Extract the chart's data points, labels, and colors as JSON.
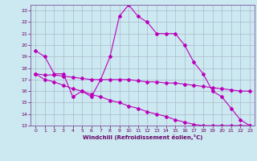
{
  "xlabel": "Windchill (Refroidissement éolien,°C)",
  "bg_color": "#cce8f0",
  "grid_color": "#aabbcc",
  "line_color": "#bb00bb",
  "x": [
    0,
    1,
    2,
    3,
    4,
    5,
    6,
    7,
    8,
    9,
    10,
    11,
    12,
    13,
    14,
    15,
    16,
    17,
    18,
    19,
    20,
    21,
    22,
    23
  ],
  "line1": [
    19.5,
    19.0,
    17.5,
    17.5,
    15.5,
    16.0,
    15.5,
    17.0,
    19.0,
    22.5,
    23.5,
    22.5,
    22.0,
    21.0,
    21.0,
    21.0,
    20.0,
    18.5,
    17.5,
    16.0,
    15.5,
    14.5,
    13.5,
    13.0
  ],
  "line2": [
    17.5,
    17.4,
    17.4,
    17.3,
    17.2,
    17.1,
    17.0,
    17.0,
    17.0,
    17.0,
    17.0,
    16.9,
    16.8,
    16.8,
    16.7,
    16.7,
    16.6,
    16.5,
    16.4,
    16.3,
    16.2,
    16.1,
    16.0,
    16.0
  ],
  "line3": [
    17.5,
    17.0,
    16.8,
    16.5,
    16.2,
    16.0,
    15.7,
    15.5,
    15.2,
    15.0,
    14.7,
    14.5,
    14.2,
    14.0,
    13.8,
    13.5,
    13.3,
    13.1,
    13.0,
    13.0,
    13.0,
    13.0,
    13.0,
    13.0
  ],
  "ylim_min": 13,
  "ylim_max": 23.5,
  "yticks": [
    13,
    14,
    15,
    16,
    17,
    18,
    19,
    20,
    21,
    22,
    23
  ],
  "xlim_min": -0.5,
  "xlim_max": 23.5,
  "xticks": [
    0,
    1,
    2,
    3,
    4,
    5,
    6,
    7,
    8,
    9,
    10,
    11,
    12,
    13,
    14,
    15,
    16,
    17,
    18,
    19,
    20,
    21,
    22,
    23
  ]
}
